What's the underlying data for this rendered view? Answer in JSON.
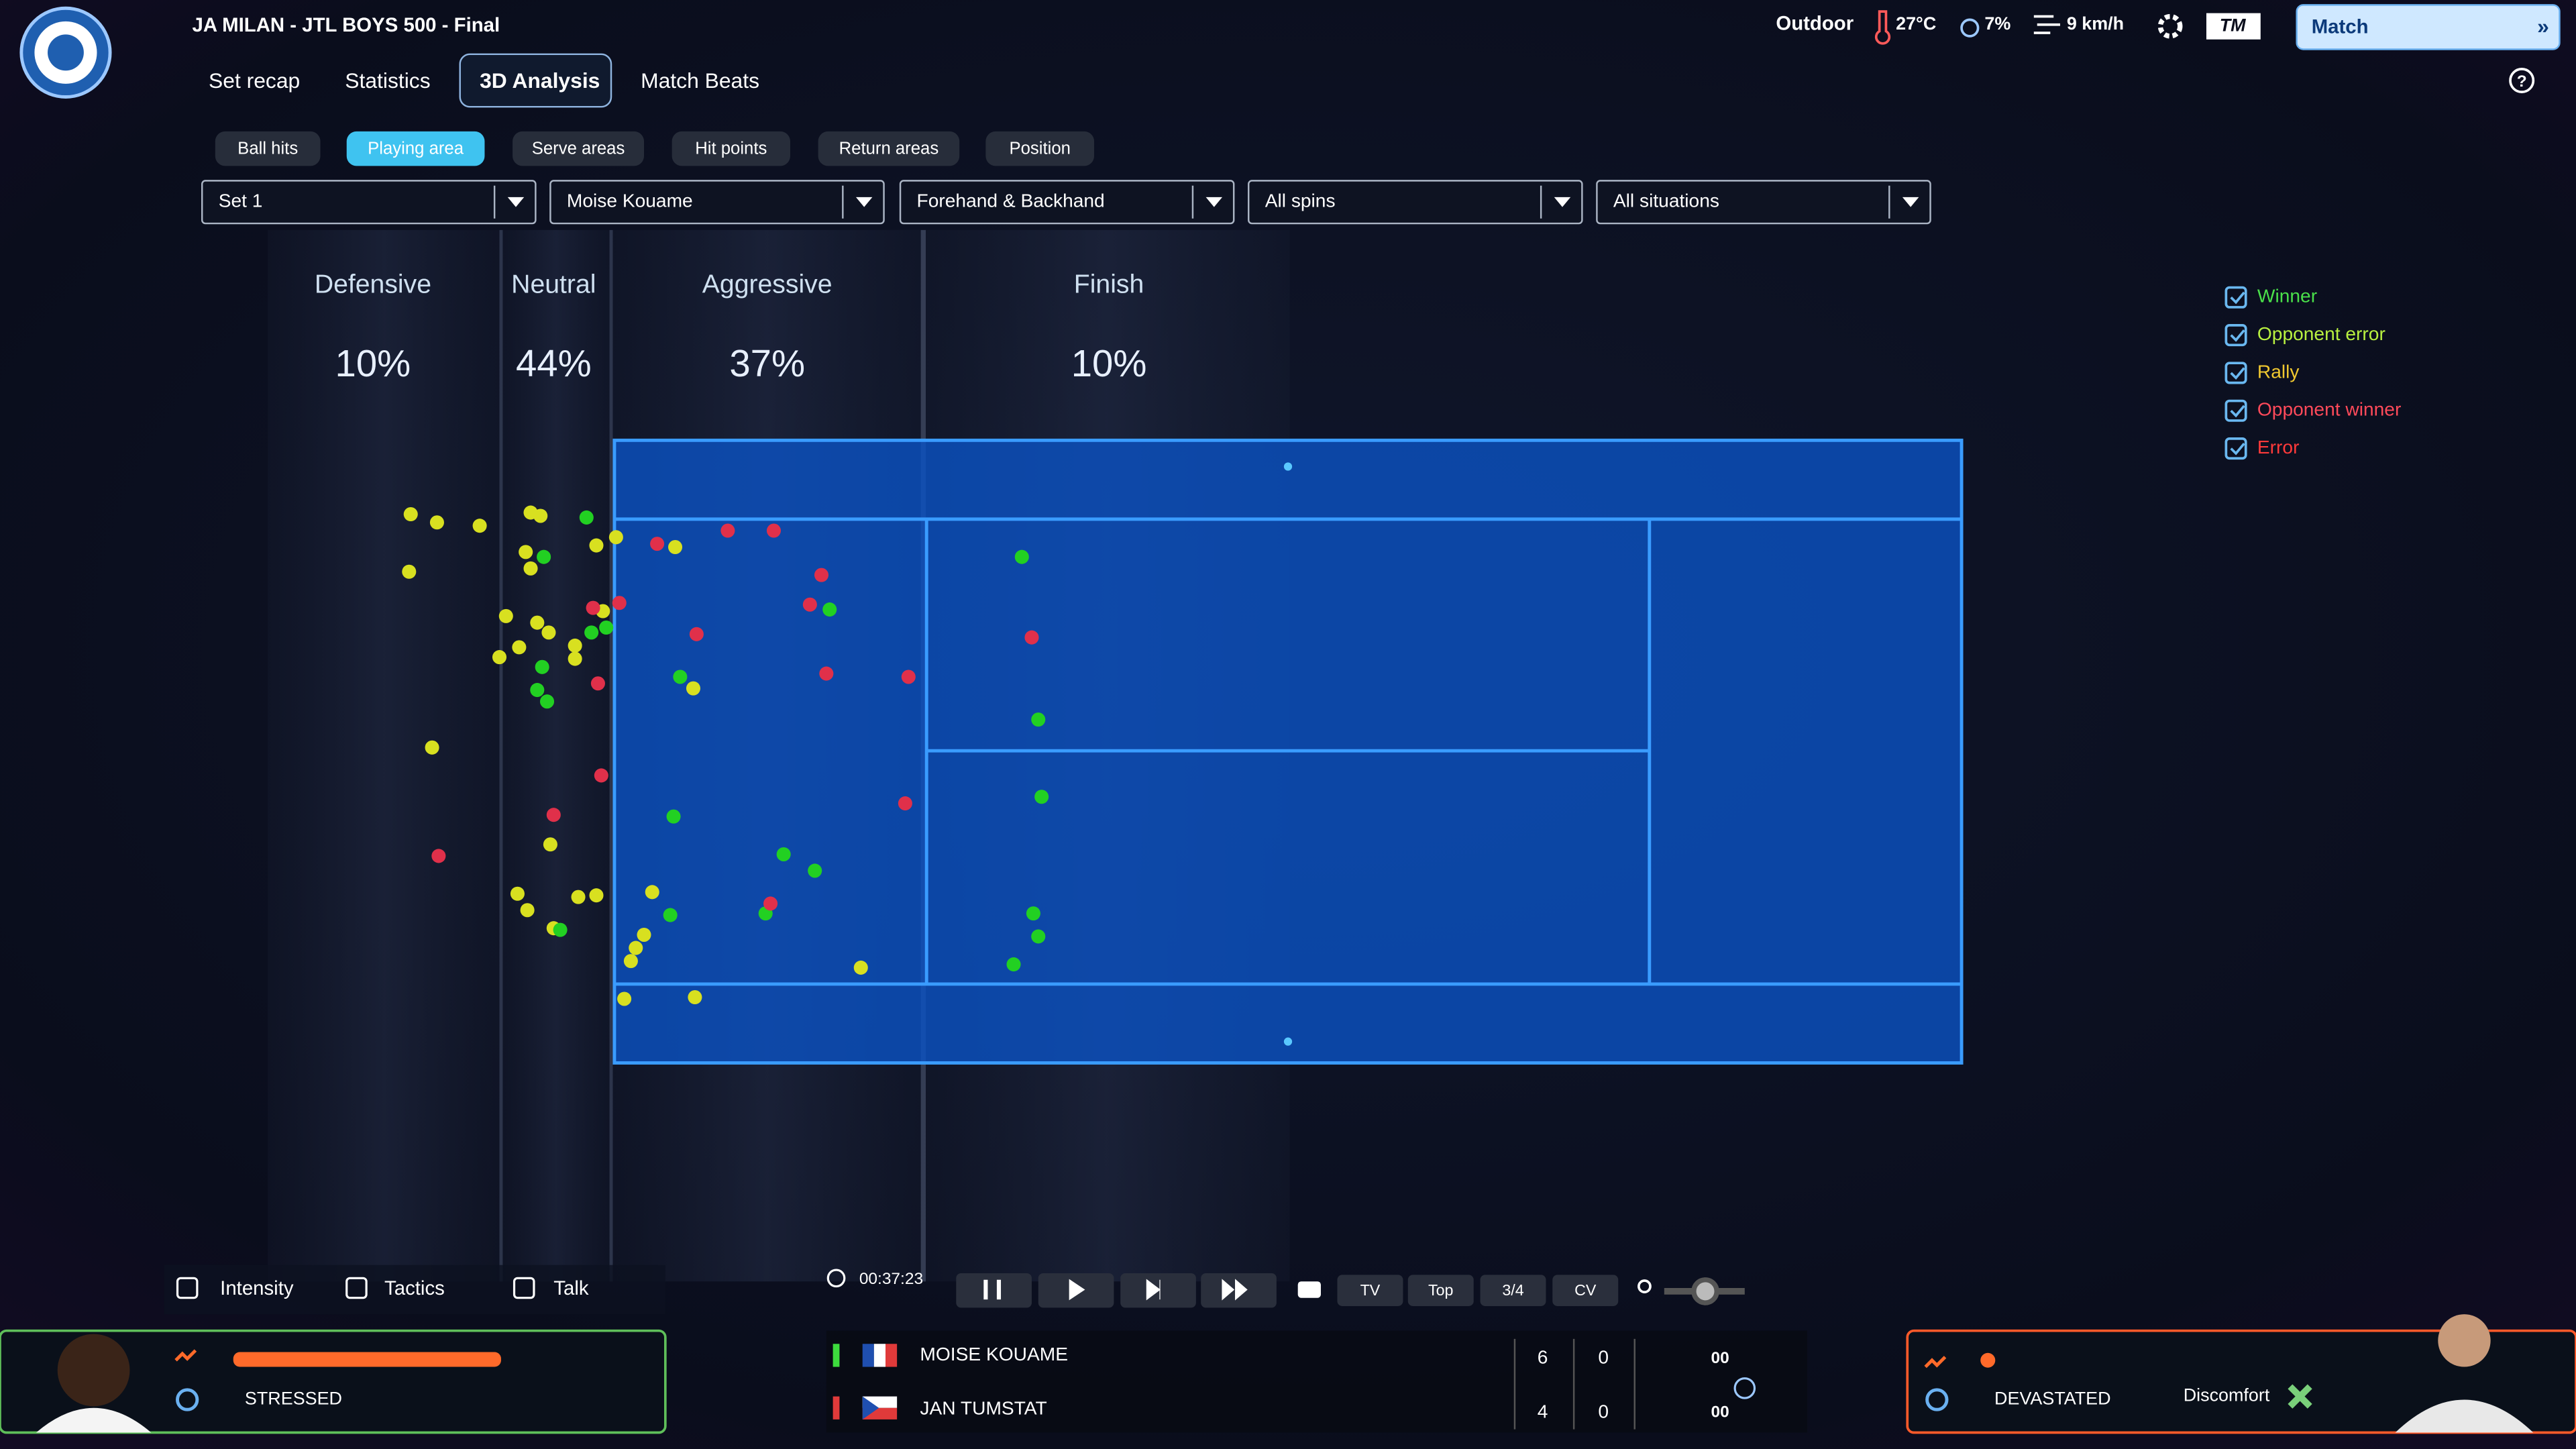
{
  "header": {
    "title": "JA MILAN - JTL BOYS 500 - Final",
    "conditions": [
      "Outdoor",
      "27°C",
      "7%",
      "9 km/h"
    ],
    "brand": "TM",
    "match_button": "Match"
  },
  "tabs": [
    "Set recap",
    "Statistics",
    "3D Analysis",
    "Match Beats"
  ],
  "subtabs": [
    "Ball hits",
    "Playing area",
    "Serve areas",
    "Hit points",
    "Return areas",
    "Position"
  ],
  "filters": [
    "Set 1",
    "Moise Kouame",
    "Forehand & Backhand",
    "All spins",
    "All situations"
  ],
  "zones": [
    {
      "label": "Defensive",
      "share": "10%"
    },
    {
      "label": "Neutral",
      "share": "44%"
    },
    {
      "label": "Aggressive",
      "share": "37%"
    },
    {
      "label": "Finish",
      "share": "10%"
    }
  ],
  "legend": [
    "Winner",
    "Opponent error",
    "Rally",
    "Opponent winner",
    "Error"
  ],
  "actions": [
    "Intensity",
    "Tactics",
    "Talk"
  ],
  "timer": "00:37:23",
  "camera_views": [
    "TV",
    "Top",
    "3/4",
    "CV"
  ],
  "left_player": {
    "status": "STRESSED"
  },
  "right_player": {
    "status": "DEVASTATED",
    "condition": "Discomfort"
  },
  "scoreboard": [
    {
      "name": "MOISE KOUAME",
      "scores": [
        "6",
        "0",
        "00"
      ]
    },
    {
      "name": "JAN TUMSTAT",
      "scores": [
        "4",
        "0",
        "00"
      ]
    }
  ]
}
